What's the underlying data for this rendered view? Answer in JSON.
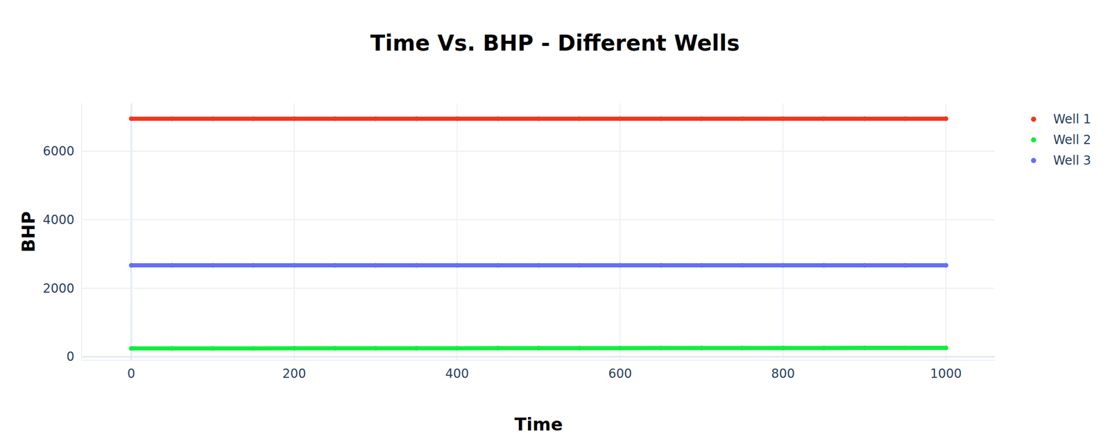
{
  "chart_data": {
    "type": "line",
    "title": "Time Vs. BHP - Different Wells",
    "x_label": "Time",
    "y_label": "BHP",
    "x": [
      0,
      50,
      100,
      150,
      200,
      250,
      300,
      350,
      400,
      450,
      500,
      550,
      600,
      650,
      700,
      750,
      800,
      850,
      900,
      950,
      1000
    ],
    "series": [
      {
        "name": "Well 1",
        "color": "#f2361e",
        "marker": "circle",
        "values": [
          6950,
          6950,
          6950,
          6950,
          6950,
          6950,
          6950,
          6950,
          6950,
          6950,
          6950,
          6950,
          6950,
          6950,
          6950,
          6950,
          6950,
          6950,
          6950,
          6950,
          6950
        ]
      },
      {
        "name": "Well 2",
        "color": "#0cf03c",
        "marker": "circle",
        "values": [
          245,
          246,
          247,
          248,
          249,
          250,
          250,
          251,
          252,
          253,
          254,
          254,
          255,
          256,
          257,
          258,
          258,
          259,
          260,
          261,
          262
        ]
      },
      {
        "name": "Well 3",
        "color": "#636efa",
        "marker": "circle",
        "values": [
          2670,
          2670,
          2670,
          2670,
          2670,
          2670,
          2670,
          2670,
          2670,
          2670,
          2670,
          2670,
          2670,
          2670,
          2670,
          2670,
          2670,
          2670,
          2670,
          2670,
          2670
        ]
      }
    ],
    "xlim": [
      -61,
      1060
    ],
    "xticks": [
      0,
      200,
      400,
      600,
      800,
      1000
    ],
    "ylim": [
      -100,
      7400
    ],
    "yticks": [
      0,
      2000,
      4000,
      6000
    ],
    "grid": true,
    "legend": "top-right"
  }
}
